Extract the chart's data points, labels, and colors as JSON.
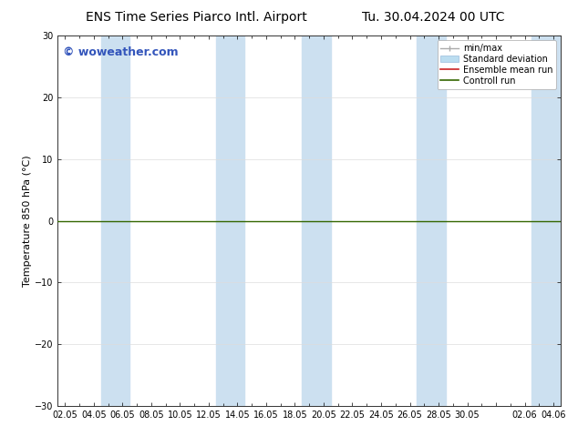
{
  "title_left": "ENS Time Series Piarco Intl. Airport",
  "title_right": "Tu. 30.04.2024 00 UTC",
  "ylabel": "Temperature 850 hPa (°C)",
  "ylim": [
    -30,
    30
  ],
  "yticks": [
    -30,
    -20,
    -10,
    0,
    10,
    20,
    30
  ],
  "x_labels": [
    "02.05",
    "04.05",
    "06.05",
    "08.05",
    "10.05",
    "12.05",
    "14.05",
    "16.05",
    "18.05",
    "20.05",
    "22.05",
    "24.05",
    "26.05",
    "28.05",
    "30.05",
    "",
    "02.06",
    "04.06"
  ],
  "x_positions": [
    0,
    2,
    4,
    6,
    8,
    10,
    12,
    14,
    16,
    18,
    20,
    22,
    24,
    26,
    28,
    30,
    32,
    34
  ],
  "xlim": [
    -0.5,
    34.5
  ],
  "shaded_bands": [
    {
      "x_start": 2.5,
      "x_end": 4.5
    },
    {
      "x_start": 10.5,
      "x_end": 12.5
    },
    {
      "x_start": 16.5,
      "x_end": 18.5
    },
    {
      "x_start": 24.5,
      "x_end": 26.5
    },
    {
      "x_start": 32.5,
      "x_end": 34.5
    }
  ],
  "band_color": "#cce0f0",
  "zero_line_color": "#336600",
  "zero_line_y": 0,
  "watermark_text": "© woweather.com",
  "watermark_color": "#3355bb",
  "watermark_fontsize": 9,
  "legend_items": [
    {
      "label": "min/max",
      "color": "#aaaaaa",
      "type": "errbar"
    },
    {
      "label": "Standard deviation",
      "color": "#aaccee",
      "type": "fill"
    },
    {
      "label": "Ensemble mean run",
      "color": "#cc2222",
      "type": "line"
    },
    {
      "label": "Controll run",
      "color": "#336600",
      "type": "line"
    }
  ],
  "bg_color": "#ffffff",
  "title_fontsize": 10,
  "tick_fontsize": 7,
  "ylabel_fontsize": 8,
  "legend_fontsize": 7
}
